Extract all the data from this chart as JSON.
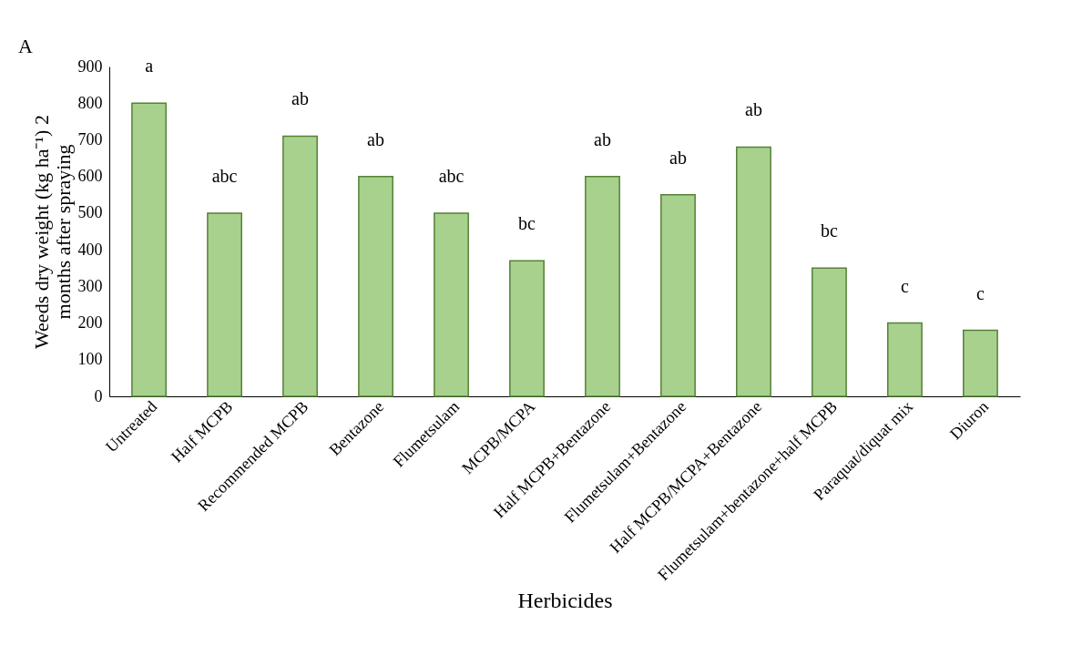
{
  "chart_data": {
    "type": "bar",
    "xlabel": "Herbicides",
    "ylabel": "Weeds dry weight (kg ha⁻¹) 2 months after spraying",
    "categories": [
      "Untreated",
      "Half MCPB",
      "Recommended MCPB",
      "Bentazone",
      "Flumetsulam",
      "MCPB/MCPA",
      "Half MCPB+Bentazone",
      "Flumetsulam+Bentazone",
      "Half MCPB/MCPA+Bentazone",
      "Flumetsulam+bentazone+half MCPB",
      "Paraquat/diquat mix",
      "Diuron"
    ],
    "values": [
      800,
      500,
      710,
      600,
      500,
      370,
      600,
      550,
      680,
      350,
      200,
      180
    ],
    "color": "#a9d18e",
    "ylim": [
      0,
      900
    ],
    "yticks": [
      0,
      100,
      200,
      300,
      400,
      500,
      600,
      700,
      800,
      900
    ],
    "grid": false,
    "value_labels": [
      "a",
      "abc",
      "ab",
      "ab",
      "abc",
      "bc",
      "ab",
      "ab",
      "ab",
      "bc",
      "c",
      "c"
    ],
    "annotations": [
      "A"
    ]
  }
}
